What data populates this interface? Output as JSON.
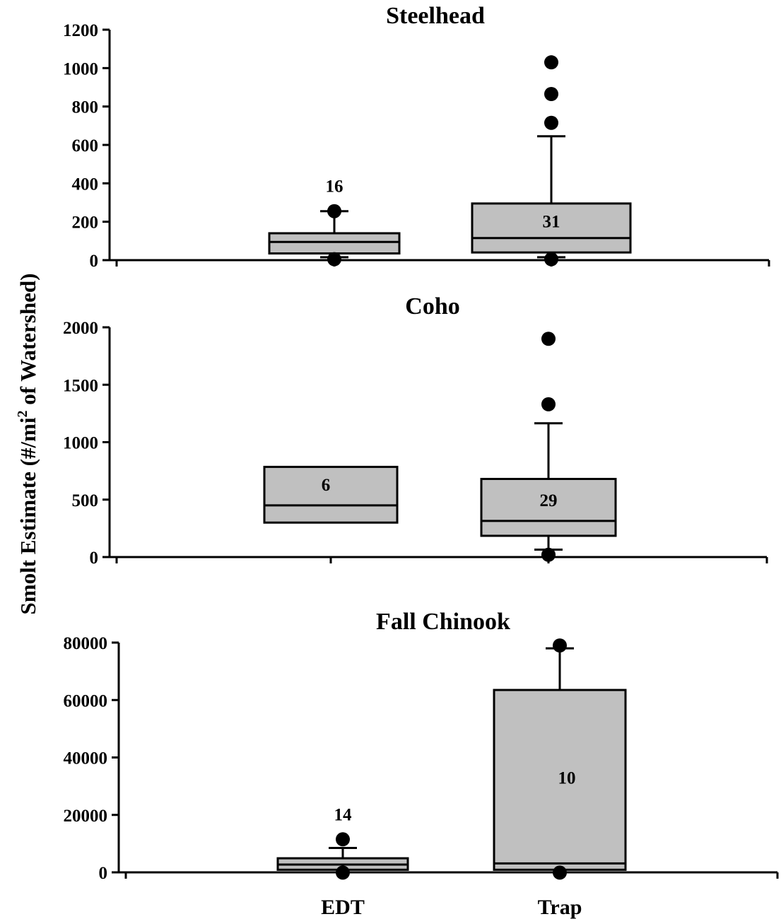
{
  "y_axis_title": {
    "before": "Smolt Estimate (#/mi",
    "superscript": "2",
    "after": " of Watershed)"
  },
  "x_categories": [
    "EDT",
    "Trap"
  ],
  "colors": {
    "box_fill": "#c0c0c0",
    "stroke": "#000000"
  },
  "chart_data": [
    {
      "type": "box",
      "title": "Steelhead",
      "categories": [
        "EDT",
        "Trap"
      ],
      "ylim": [
        0,
        1200
      ],
      "yticks": [
        0,
        200,
        400,
        600,
        800,
        1000,
        1200
      ],
      "boxes": [
        {
          "category": "EDT",
          "q1": 35,
          "median": 95,
          "q3": 140,
          "whisker_low": 15,
          "whisker_high": 255,
          "n_label": "16",
          "n_position": "above",
          "outliers": [
            255,
            5
          ]
        },
        {
          "category": "Trap",
          "q1": 40,
          "median": 115,
          "q3": 295,
          "whisker_low": 15,
          "whisker_high": 645,
          "n_label": "31",
          "n_position": "inside",
          "outliers": [
            1030,
            865,
            715,
            5
          ]
        }
      ]
    },
    {
      "type": "box",
      "title": "Coho",
      "categories": [
        "EDT",
        "Trap"
      ],
      "ylim": [
        0,
        2000
      ],
      "yticks": [
        0,
        500,
        1000,
        1500,
        2000
      ],
      "boxes": [
        {
          "category": "EDT",
          "q1": 300,
          "median": 450,
          "q3": 785,
          "whisker_low": null,
          "whisker_high": null,
          "n_label": "6",
          "n_position": "inside",
          "outliers": []
        },
        {
          "category": "Trap",
          "q1": 185,
          "median": 315,
          "q3": 680,
          "whisker_low": 65,
          "whisker_high": 1165,
          "n_label": "29",
          "n_position": "inside",
          "outliers": [
            1900,
            1330,
            20
          ]
        }
      ]
    },
    {
      "type": "box",
      "title": "Fall Chinook",
      "categories": [
        "EDT",
        "Trap"
      ],
      "ylim": [
        0,
        80000
      ],
      "yticks": [
        0,
        20000,
        40000,
        60000,
        80000
      ],
      "boxes": [
        {
          "category": "EDT",
          "q1": 900,
          "median": 2700,
          "q3": 4900,
          "whisker_low": null,
          "whisker_high": 8500,
          "n_label": "14",
          "n_position": "above",
          "outliers": [
            11500,
            -100
          ]
        },
        {
          "category": "Trap",
          "q1": 900,
          "median": 3100,
          "q3": 63500,
          "whisker_low": null,
          "whisker_high": 78000,
          "n_label": "10",
          "n_position": "inside",
          "outliers": [
            79000,
            -100
          ]
        }
      ]
    }
  ]
}
